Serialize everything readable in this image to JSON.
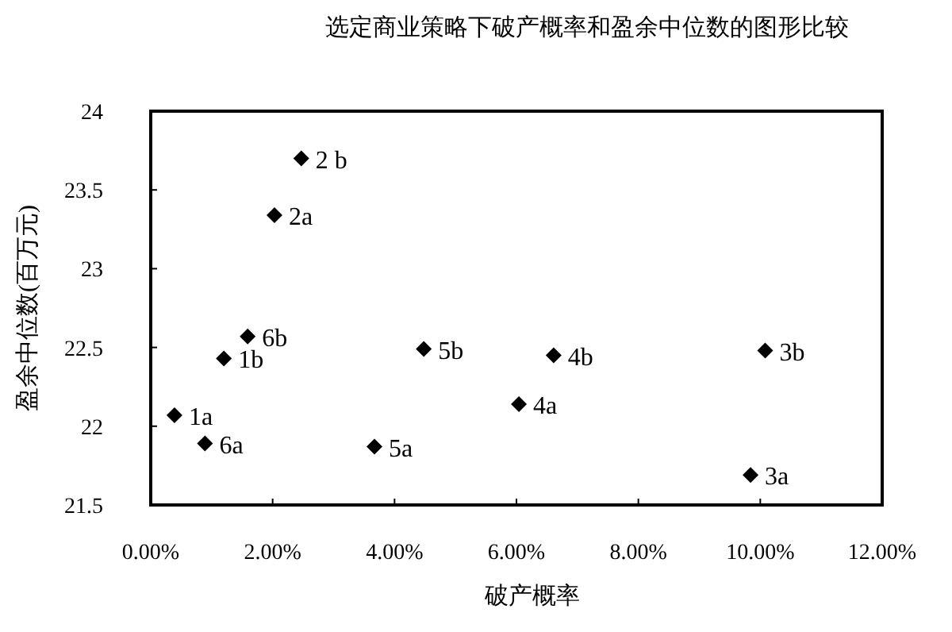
{
  "chart_data": {
    "type": "scatter",
    "title": "选定商业策略下破产概率和盈余中位数的图形比较",
    "xlabel": "破产概率",
    "ylabel": "盈余中位数(百万元)",
    "x": [
      0.39,
      1.2,
      2.03,
      2.47,
      9.84,
      10.08,
      6.04,
      6.61,
      3.67,
      4.48,
      0.89,
      1.59
    ],
    "values": [
      22.07,
      22.43,
      23.34,
      23.7,
      21.69,
      22.48,
      22.14,
      22.45,
      21.87,
      22.49,
      21.89,
      22.57
    ],
    "color": "#000000",
    "marker": "diamond",
    "grid": false,
    "xlim": [
      0,
      12
    ],
    "ylim": [
      21.5,
      24
    ],
    "xticks": [
      {
        "value": 0,
        "label": "0.00%"
      },
      {
        "value": 2,
        "label": "2.00%"
      },
      {
        "value": 4,
        "label": "4.00%"
      },
      {
        "value": 6,
        "label": "6.00%"
      },
      {
        "value": 8,
        "label": "8.00%"
      },
      {
        "value": 10,
        "label": "10.00%"
      },
      {
        "value": 12,
        "label": "12.00%"
      }
    ],
    "yticks": [
      21.5,
      22,
      22.5,
      23,
      23.5,
      24
    ],
    "annotations": [
      {
        "text": "1a",
        "x": 0.39,
        "y": 22.07
      },
      {
        "text": "1b",
        "x": 1.2,
        "y": 22.43
      },
      {
        "text": "2a",
        "x": 2.03,
        "y": 23.34
      },
      {
        "text": "2 b",
        "x": 2.47,
        "y": 23.7
      },
      {
        "text": "3a",
        "x": 9.84,
        "y": 21.69
      },
      {
        "text": "3b",
        "x": 10.08,
        "y": 22.48
      },
      {
        "text": "4a",
        "x": 6.04,
        "y": 22.14
      },
      {
        "text": "4b",
        "x": 6.61,
        "y": 22.45
      },
      {
        "text": "5a",
        "x": 3.67,
        "y": 21.87
      },
      {
        "text": "5b",
        "x": 4.48,
        "y": 22.49
      },
      {
        "text": "6a",
        "x": 0.89,
        "y": 21.89
      },
      {
        "text": "6b",
        "x": 1.59,
        "y": 22.57
      }
    ]
  }
}
